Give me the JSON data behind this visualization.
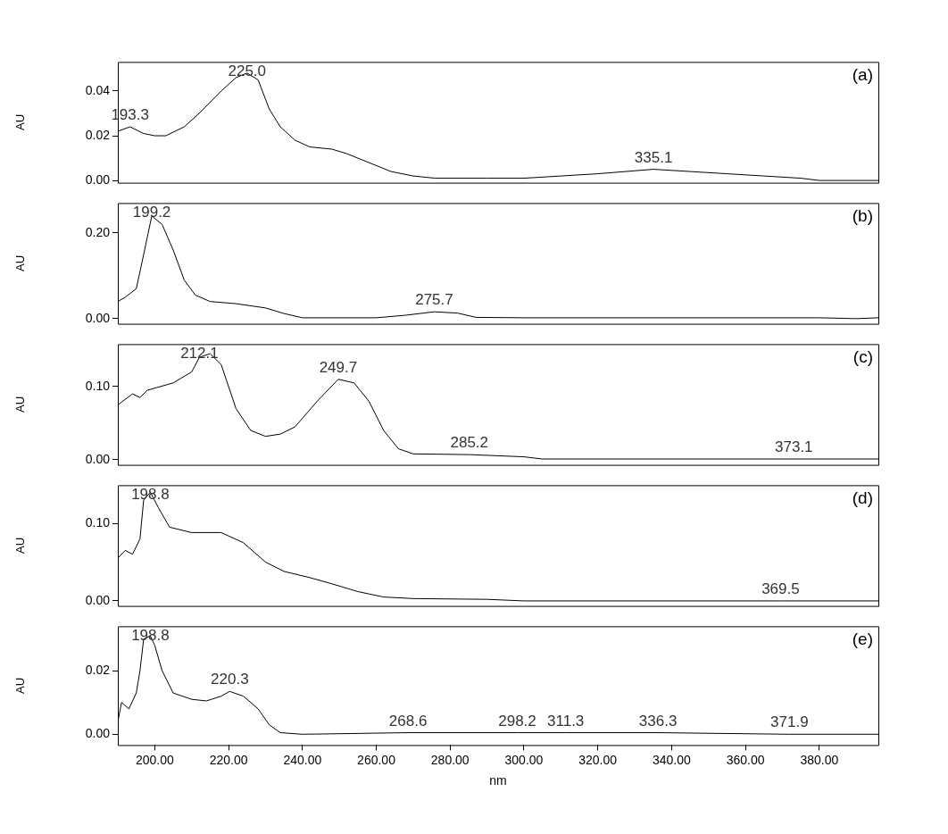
{
  "chart_data": [
    {
      "type": "line",
      "ylabel": "AU",
      "xlim": [
        190,
        396
      ],
      "ylim": [
        -0.001,
        0.053
      ],
      "tick_labels": "y",
      "marker": "none",
      "line_style": "solid",
      "yticks": [
        {
          "value": 0,
          "label": "0.00"
        },
        {
          "value": 0.02,
          "label": "0.02"
        },
        {
          "value": 0.04,
          "label": "0.04"
        }
      ],
      "annotations": [
        "(a)",
        {
          "text": "193.3",
          "x": 193.3,
          "y": 0.024
        },
        {
          "text": "225.0",
          "x": 225,
          "y": 0.048
        },
        {
          "text": "335.1",
          "x": 335.1,
          "y": 0.005
        }
      ],
      "series": [
        {
          "color": "#000000",
          "x": [
            190,
            193.3,
            197,
            200,
            203,
            208,
            212,
            218,
            222,
            225,
            228,
            231,
            234,
            238,
            242,
            248,
            252,
            258,
            264,
            270,
            276,
            290,
            300,
            310,
            320,
            335.1,
            345,
            355,
            365,
            375,
            380,
            396
          ],
          "values": [
            0.022,
            0.024,
            0.021,
            0.02,
            0.02,
            0.024,
            0.03,
            0.04,
            0.046,
            0.048,
            0.045,
            0.032,
            0.024,
            0.018,
            0.015,
            0.014,
            0.012,
            0.008,
            0.004,
            0.002,
            0.001,
            0.001,
            0.001,
            0.002,
            0.003,
            0.005,
            0.004,
            0.003,
            0.002,
            0.001,
            0,
            0
          ]
        }
      ]
    },
    {
      "type": "line",
      "ylabel": "AU",
      "xlim": [
        190,
        396
      ],
      "ylim": [
        -0.012,
        0.27
      ],
      "tick_labels": "y",
      "marker": "none",
      "line_style": "solid",
      "yticks": [
        {
          "value": 0,
          "label": "0.00"
        },
        {
          "value": 0.2,
          "label": "0.20"
        }
      ],
      "annotations": [
        "(b)",
        {
          "text": "199.2",
          "x": 199.2,
          "y": 0.24
        },
        {
          "text": "275.7",
          "x": 275.7,
          "y": 0.016
        }
      ],
      "series": [
        {
          "color": "#000000",
          "x": [
            190,
            192,
            195,
            197,
            199.2,
            202,
            205,
            208,
            211,
            215,
            222,
            230,
            235,
            240,
            260,
            268,
            275.7,
            282,
            287,
            300,
            380,
            390,
            396
          ],
          "values": [
            0.04,
            0.05,
            0.07,
            0.15,
            0.24,
            0.22,
            0.16,
            0.09,
            0.055,
            0.04,
            0.035,
            0.025,
            0.012,
            0.002,
            0.002,
            0.008,
            0.016,
            0.013,
            0.003,
            0.002,
            0.002,
            0,
            0.002
          ]
        }
      ]
    },
    {
      "type": "line",
      "ylabel": "AU",
      "xlim": [
        190,
        396
      ],
      "ylim": [
        -0.007,
        0.158
      ],
      "tick_labels": "y",
      "marker": "none",
      "line_style": "solid",
      "yticks": [
        {
          "value": 0,
          "label": "0.00"
        },
        {
          "value": 0.1,
          "label": "0.10"
        }
      ],
      "annotations": [
        "(c)",
        {
          "text": "212.1",
          "x": 212.1,
          "y": 0.14
        },
        {
          "text": "249.7",
          "x": 249.7,
          "y": 0.11
        },
        {
          "text": "285.2",
          "x": 285.2,
          "y": 0.007
        },
        {
          "text": "373.1",
          "x": 373.1,
          "y": 0.001
        }
      ],
      "series": [
        {
          "color": "#000000",
          "x": [
            190,
            194,
            196,
            198,
            205,
            210,
            212.1,
            215,
            218,
            222,
            226,
            230,
            234,
            238,
            244,
            249.7,
            254,
            258,
            262,
            266,
            270,
            285.2,
            300,
            305,
            396
          ],
          "values": [
            0.075,
            0.09,
            0.085,
            0.095,
            0.105,
            0.12,
            0.14,
            0.145,
            0.13,
            0.07,
            0.04,
            0.032,
            0.035,
            0.045,
            0.08,
            0.11,
            0.105,
            0.08,
            0.04,
            0.015,
            0.008,
            0.007,
            0.004,
            0.001,
            0.001
          ]
        }
      ]
    },
    {
      "type": "line",
      "ylabel": "AU",
      "xlim": [
        190,
        396
      ],
      "ylim": [
        -0.0065,
        0.149
      ],
      "tick_labels": "y",
      "marker": "none",
      "line_style": "solid",
      "yticks": [
        {
          "value": 0,
          "label": "0.00"
        },
        {
          "value": 0.1,
          "label": "0.10"
        }
      ],
      "annotations": [
        "(d)",
        {
          "text": "198.8",
          "x": 198.8,
          "y": 0.14
        },
        {
          "text": "369.5",
          "x": 369.5,
          "y": 0
        }
      ],
      "series": [
        {
          "color": "#000000",
          "x": [
            190,
            192,
            194,
            196,
            197,
            198.8,
            201,
            204,
            210,
            218,
            224,
            230,
            235,
            242,
            248,
            255,
            262,
            270,
            290,
            300,
            369.5,
            396
          ],
          "values": [
            0.055,
            0.065,
            0.06,
            0.08,
            0.13,
            0.14,
            0.12,
            0.095,
            0.088,
            0.088,
            0.075,
            0.05,
            0.038,
            0.03,
            0.022,
            0.012,
            0.005,
            0.003,
            0.002,
            0,
            0,
            0
          ]
        }
      ]
    },
    {
      "type": "line",
      "ylabel": "AU",
      "xlabel": "nm",
      "xlim": [
        190,
        396
      ],
      "ylim": [
        -0.0034,
        0.034
      ],
      "marker": "none",
      "line_style": "solid",
      "xticks": [
        {
          "value": 200,
          "label": "200.00"
        },
        {
          "value": 220,
          "label": "220.00"
        },
        {
          "value": 240,
          "label": "240.00"
        },
        {
          "value": 260,
          "label": "260.00"
        },
        {
          "value": 280,
          "label": "280.00"
        },
        {
          "value": 300,
          "label": "300.00"
        },
        {
          "value": 320,
          "label": "320.00"
        },
        {
          "value": 340,
          "label": "340.00"
        },
        {
          "value": 360,
          "label": "360.00"
        },
        {
          "value": 380,
          "label": "380.00"
        }
      ],
      "yticks": [
        {
          "value": 0,
          "label": "0.00"
        },
        {
          "value": 0.02,
          "label": "0.02"
        }
      ],
      "annotations": [
        "(e)",
        {
          "text": "198.8",
          "x": 198.8,
          "y": 0.031
        },
        {
          "text": "220.3",
          "x": 220.3,
          "y": 0.0135
        },
        {
          "text": "268.6",
          "x": 268.6,
          "y": 0.0005
        },
        {
          "text": "298.2",
          "x": 298.2,
          "y": 0.0005
        },
        {
          "text": "311.3",
          "x": 311.3,
          "y": 0.0005
        },
        {
          "text": "336.3",
          "x": 336.3,
          "y": 0.0005
        },
        {
          "text": "371.9",
          "x": 371.9,
          "y": 0
        }
      ],
      "series": [
        {
          "color": "#000000",
          "x": [
            190,
            191,
            193,
            195,
            196,
            197,
            198.8,
            200,
            202,
            205,
            210,
            214,
            218,
            220.3,
            224,
            228,
            231,
            234,
            240,
            268.6,
            298.2,
            311.3,
            336.3,
            371.9,
            396
          ],
          "values": [
            0.004,
            0.01,
            0.008,
            0.013,
            0.02,
            0.03,
            0.031,
            0.028,
            0.02,
            0.013,
            0.011,
            0.0105,
            0.012,
            0.0135,
            0.012,
            0.008,
            0.003,
            0.0005,
            0,
            0.0005,
            0.0005,
            0.0005,
            0.0005,
            0,
            0
          ]
        }
      ]
    }
  ]
}
